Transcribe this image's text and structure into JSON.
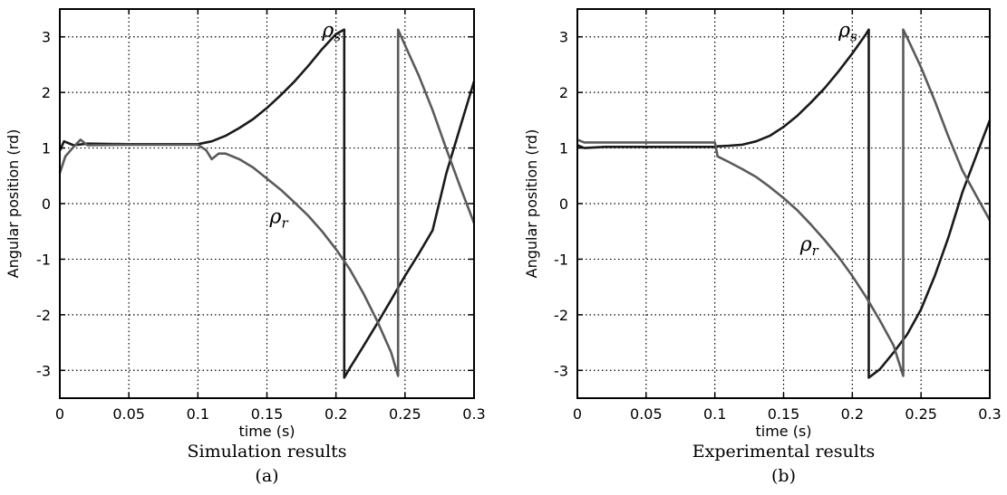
{
  "chart_data": [
    {
      "type": "line",
      "caption": "Simulation results",
      "panel_label": "(a)",
      "xlabel": "time (s)",
      "ylabel": "Angular position (rd)",
      "xlim": [
        0,
        0.3
      ],
      "ylim": [
        -3.5,
        3.5
      ],
      "xticks": [
        "0",
        "0.05",
        "0.1",
        "0.15",
        "0.2",
        "0.25",
        "0.3"
      ],
      "yticks": [
        "-3",
        "-2",
        "-1",
        "0",
        "1",
        "2",
        "3"
      ],
      "grid": true,
      "series": [
        {
          "name": "ρs",
          "color": "#1a1a1a",
          "x": [
            0,
            0.003,
            0.01,
            0.02,
            0.05,
            0.08,
            0.1,
            0.11,
            0.12,
            0.13,
            0.14,
            0.15,
            0.16,
            0.17,
            0.18,
            0.19,
            0.2,
            0.206,
            0.206,
            0.21,
            0.22,
            0.23,
            0.24,
            0.25,
            0.26,
            0.27,
            0.28,
            0.29,
            0.3
          ],
          "y": [
            0.95,
            1.12,
            1.05,
            1.08,
            1.07,
            1.07,
            1.07,
            1.12,
            1.22,
            1.36,
            1.52,
            1.72,
            1.95,
            2.2,
            2.48,
            2.78,
            3.05,
            3.13,
            -3.13,
            -2.96,
            -2.56,
            -2.15,
            -1.73,
            -1.3,
            -0.9,
            -0.48,
            0.55,
            1.38,
            2.2
          ]
        },
        {
          "name": "ρr",
          "color": "#5a5a5a",
          "x": [
            0,
            0.004,
            0.01,
            0.015,
            0.02,
            0.05,
            0.08,
            0.1,
            0.106,
            0.11,
            0.115,
            0.12,
            0.13,
            0.14,
            0.15,
            0.16,
            0.17,
            0.18,
            0.19,
            0.2,
            0.21,
            0.22,
            0.23,
            0.24,
            0.245,
            0.245,
            0.25,
            0.26,
            0.27,
            0.28,
            0.29,
            0.3
          ],
          "y": [
            0.55,
            0.85,
            1.02,
            1.15,
            1.05,
            1.06,
            1.06,
            1.06,
            0.96,
            0.8,
            0.9,
            0.9,
            0.8,
            0.65,
            0.45,
            0.25,
            0.02,
            -0.22,
            -0.5,
            -0.82,
            -1.18,
            -1.62,
            -2.12,
            -2.68,
            -3.1,
            3.13,
            2.85,
            2.3,
            1.68,
            0.98,
            0.3,
            -0.35
          ]
        }
      ],
      "annotations": [
        {
          "text": "ρs",
          "x": 0.19,
          "y": 3.0
        },
        {
          "text": "ρr",
          "x": 0.152,
          "y": -0.35
        }
      ]
    },
    {
      "type": "line",
      "caption": "Experimental results",
      "panel_label": "(b)",
      "xlabel": "time (s)",
      "ylabel": "Angular position (rd)",
      "xlim": [
        0,
        0.3
      ],
      "ylim": [
        -3.5,
        3.5
      ],
      "xticks": [
        "0",
        "0.05",
        "0.1",
        "0.15",
        "0.2",
        "0.25",
        "0.3"
      ],
      "yticks": [
        "-3",
        "-2",
        "-1",
        "0",
        "1",
        "2",
        "3"
      ],
      "grid": true,
      "series": [
        {
          "name": "ρs",
          "color": "#1a1a1a",
          "x": [
            0,
            0.005,
            0.02,
            0.05,
            0.08,
            0.1,
            0.102,
            0.11,
            0.12,
            0.13,
            0.14,
            0.15,
            0.16,
            0.17,
            0.18,
            0.19,
            0.2,
            0.21,
            0.212,
            0.212,
            0.22,
            0.23,
            0.24,
            0.25,
            0.26,
            0.27,
            0.28,
            0.29,
            0.3
          ],
          "y": [
            1.05,
            1.0,
            1.02,
            1.02,
            1.02,
            1.02,
            1.03,
            1.04,
            1.06,
            1.12,
            1.22,
            1.38,
            1.58,
            1.82,
            2.08,
            2.38,
            2.7,
            3.05,
            3.13,
            -3.13,
            -2.98,
            -2.68,
            -2.35,
            -1.9,
            -1.3,
            -0.6,
            0.2,
            0.85,
            1.5
          ]
        },
        {
          "name": "ρr",
          "color": "#5a5a5a",
          "x": [
            0,
            0.005,
            0.02,
            0.05,
            0.08,
            0.1,
            0.102,
            0.11,
            0.12,
            0.13,
            0.14,
            0.15,
            0.16,
            0.17,
            0.18,
            0.19,
            0.2,
            0.21,
            0.22,
            0.23,
            0.237,
            0.237,
            0.24,
            0.25,
            0.26,
            0.27,
            0.28,
            0.29,
            0.3
          ],
          "y": [
            1.15,
            1.1,
            1.1,
            1.1,
            1.1,
            1.1,
            0.85,
            0.75,
            0.62,
            0.48,
            0.3,
            0.1,
            -0.12,
            -0.38,
            -0.66,
            -0.96,
            -1.3,
            -1.68,
            -2.1,
            -2.55,
            -3.1,
            3.13,
            2.98,
            2.45,
            1.85,
            1.2,
            0.6,
            0.15,
            -0.3
          ]
        }
      ],
      "annotations": [
        {
          "text": "ρs",
          "x": 0.19,
          "y": 3.0
        },
        {
          "text": "ρr",
          "x": 0.162,
          "y": -0.85
        }
      ]
    }
  ]
}
